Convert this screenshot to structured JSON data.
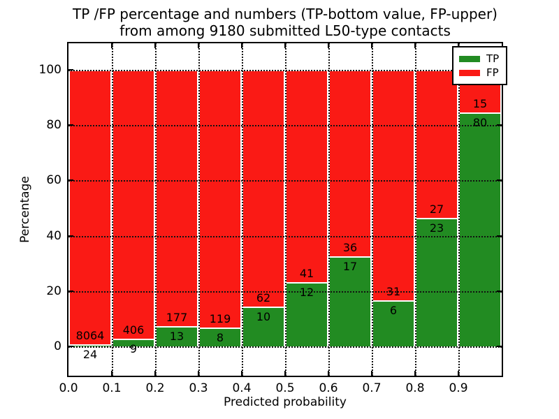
{
  "figure": {
    "title_line1": "TP /FP percentage and numbers (TP-bottom value, FP-upper)",
    "title_line2": "from among 9180 submitted L50-type contacts"
  },
  "chart_data": {
    "type": "bar",
    "variant": "stacked-percentage-histogram",
    "title": "TP /FP percentage and numbers (TP-bottom value, FP-upper) from among 9180 submitted L50-type contacts",
    "xlabel": "Predicted probability",
    "ylabel": "Percentage",
    "xlim": [
      0.0,
      1.0
    ],
    "ylim_displayed": [
      -10.7,
      109.7
    ],
    "bin_width": 0.1,
    "x_ticks": [
      "0.0",
      "0.1",
      "0.2",
      "0.3",
      "0.4",
      "0.5",
      "0.6",
      "0.7",
      "0.8",
      "0.9"
    ],
    "y_ticks": [
      0,
      20,
      40,
      60,
      80,
      100
    ],
    "grid": "dotted",
    "grid_on": true,
    "legend_position": "upper right",
    "legend": [
      {
        "label": "TP",
        "color": "#228b22"
      },
      {
        "label": "FP",
        "color": "#fa1a15"
      }
    ],
    "annotation_note": "FP count printed above TP/FP boundary, TP count printed below it",
    "total_contacts": 9180,
    "bins": [
      {
        "x_start": 0.0,
        "x_end": 0.1,
        "tp": 24,
        "fp": 8064,
        "tp_pct": 0.3
      },
      {
        "x_start": 0.1,
        "x_end": 0.2,
        "tp": 9,
        "fp": 406,
        "tp_pct": 2.2
      },
      {
        "x_start": 0.2,
        "x_end": 0.3,
        "tp": 13,
        "fp": 177,
        "tp_pct": 6.8
      },
      {
        "x_start": 0.3,
        "x_end": 0.4,
        "tp": 8,
        "fp": 119,
        "tp_pct": 6.3
      },
      {
        "x_start": 0.4,
        "x_end": 0.5,
        "tp": 10,
        "fp": 62,
        "tp_pct": 13.9
      },
      {
        "x_start": 0.5,
        "x_end": 0.6,
        "tp": 12,
        "fp": 41,
        "tp_pct": 22.6
      },
      {
        "x_start": 0.6,
        "x_end": 0.7,
        "tp": 17,
        "fp": 36,
        "tp_pct": 32.1
      },
      {
        "x_start": 0.7,
        "x_end": 0.8,
        "tp": 6,
        "fp": 31,
        "tp_pct": 16.2
      },
      {
        "x_start": 0.8,
        "x_end": 0.9,
        "tp": 23,
        "fp": 27,
        "tp_pct": 46.0
      },
      {
        "x_start": 0.9,
        "x_end": 1.0,
        "tp": 80,
        "fp": 15,
        "tp_pct": 84.2
      }
    ],
    "colors": {
      "tp_fill": "#228b22",
      "fp_fill": "#fa1a15",
      "bar_edge": "#ffffff",
      "grid": "#111111",
      "text": "#000000",
      "background": "#ffffff"
    }
  }
}
